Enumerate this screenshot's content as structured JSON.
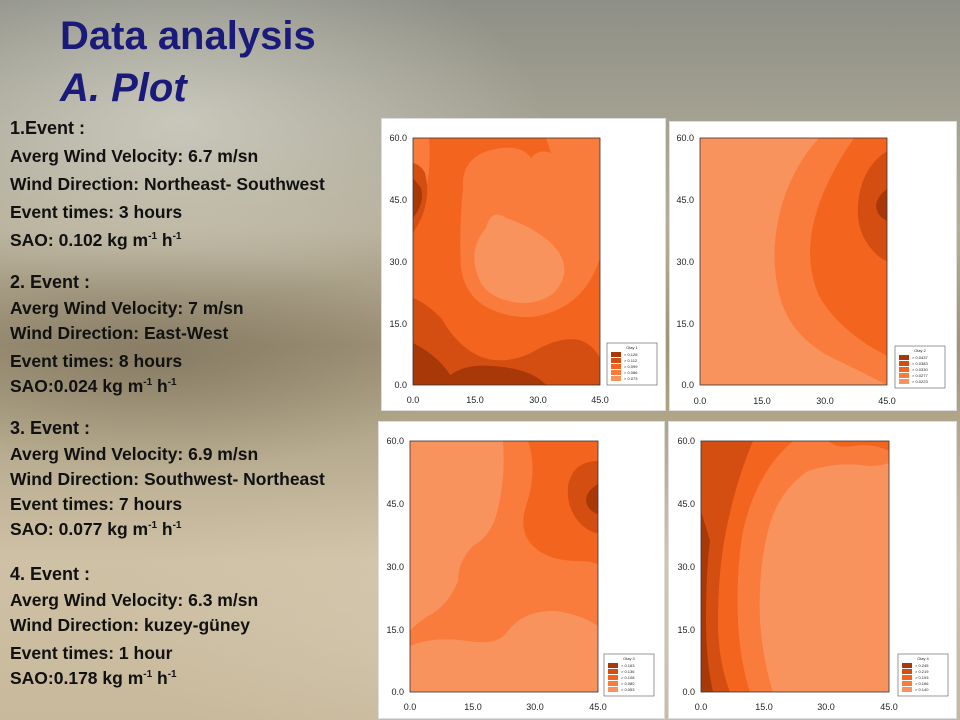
{
  "slide": {
    "title": "Data analysis",
    "subtitle": "A. Plot"
  },
  "events": [
    {
      "heading": "1.Event :",
      "velocity": "Averg Wind Velocity: 6.7 m/sn",
      "direction": "Wind Direction: Northeast- Southwest",
      "times": "Event times: 3 hours",
      "sao_prefix": "SAO: 0.102 kg m",
      "exp1": "-1",
      "unit_h": " h",
      "exp2": "-1"
    },
    {
      "heading": "2. Event :",
      "velocity": "Averg Wind Velocity: 7 m/sn",
      "direction": "Wind Direction: East-West",
      "times": "Event times: 8 hours",
      "sao_prefix": "SAO:0.024 kg m",
      "exp1": "-1",
      "unit_h": " h",
      "exp2": "-1"
    },
    {
      "heading": "3. Event :",
      "velocity": "Averg Wind Velocity: 6.9 m/sn",
      "direction": "Wind Direction: Southwest- Northeast",
      "times": "Event times: 7 hours",
      "sao_prefix": "SAO: 0.077 kg m",
      "exp1": "-1",
      "unit_h": " h",
      "exp2": "-1"
    },
    {
      "heading": "4. Event :",
      "velocity": "Averg Wind Velocity: 6.3 m/sn",
      "direction": "Wind Direction: kuzey-güney",
      "times": "Event times: 1 hour",
      "sao_prefix": "SAO:0.178 kg m",
      "exp1": "-1",
      "unit_h": " h",
      "exp2": "-1"
    }
  ],
  "plots": [
    {
      "x_ticks": [
        "0.0",
        "15.0",
        "30.0",
        "45.0"
      ],
      "y_ticks": [
        "0.0",
        "15.0",
        "30.0",
        "45.0",
        "60.0"
      ],
      "legend_title": "Olay 1",
      "legend_levels": [
        "> 0.126",
        "> 0.112",
        "> 0.099",
        "> 0.086",
        "> 0.073"
      ]
    },
    {
      "x_ticks": [
        "0.0",
        "15.0",
        "30.0",
        "45.0"
      ],
      "y_ticks": [
        "0.0",
        "15.0",
        "30.0",
        "45.0",
        "60.0"
      ],
      "legend_title": "Olay 2",
      "legend_levels": [
        "> 0.0437",
        "> 0.0383",
        "> 0.0330",
        "> 0.0277",
        "> 0.0223"
      ]
    },
    {
      "x_ticks": [
        "0.0",
        "15.0",
        "30.0",
        "45.0"
      ],
      "y_ticks": [
        "0.0",
        "15.0",
        "30.0",
        "45.0",
        "60.0"
      ],
      "legend_title": "Olay 3",
      "legend_levels": [
        "> 0.163",
        "> 0.136",
        "> 0.108",
        "> 0.080",
        "> 0.053"
      ]
    },
    {
      "x_ticks": [
        "0.0",
        "15.0",
        "30.0",
        "45.0"
      ],
      "y_ticks": [
        "0.0",
        "15.0",
        "30.0",
        "45.0",
        "60.0"
      ],
      "legend_title": "Olay 4",
      "legend_levels": [
        "> 0.245",
        "> 0.219",
        "> 0.193",
        "> 0.166",
        "> 0.140"
      ]
    }
  ],
  "colors": {
    "title": "#1a1a7a",
    "level_1": "#f9935e",
    "level_2": "#fa7c3c",
    "level_3": "#f3651f",
    "level_4": "#d44d11",
    "level_5": "#a83808"
  }
}
